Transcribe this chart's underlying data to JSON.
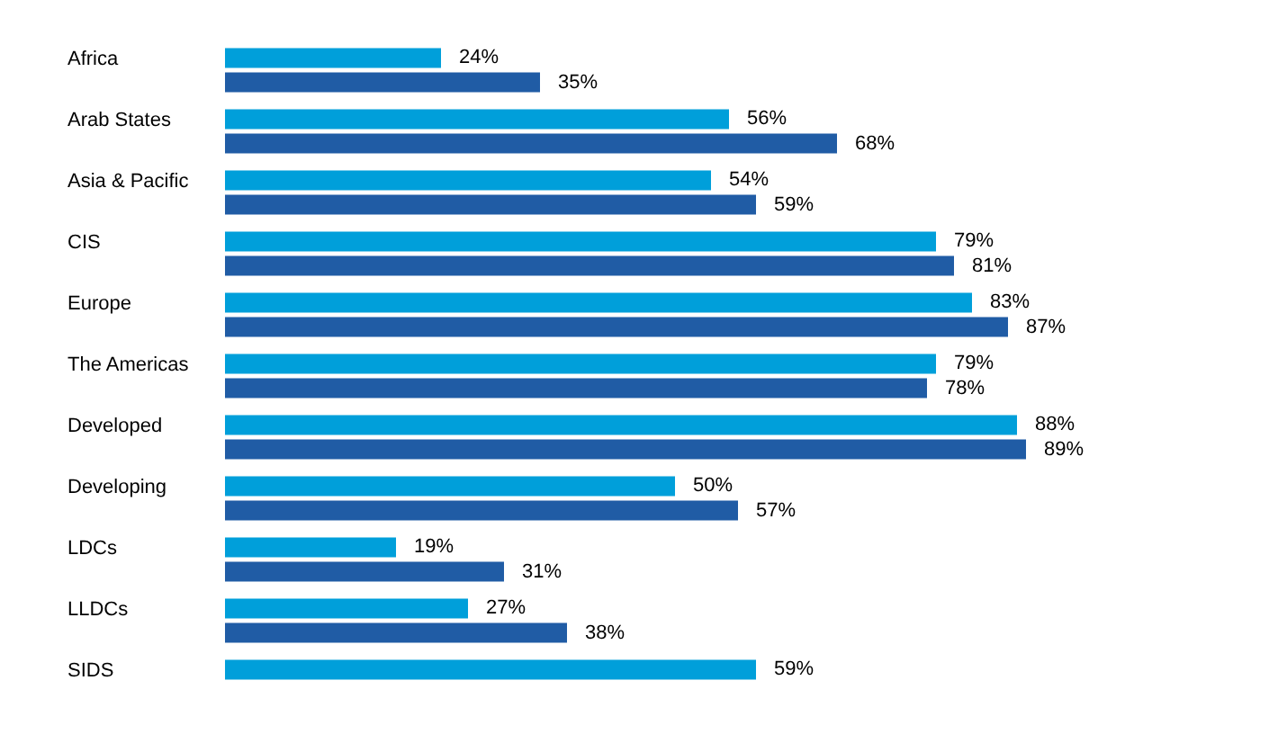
{
  "chart_data": {
    "type": "bar",
    "orientation": "horizontal",
    "categories": [
      "Africa",
      "Arab States",
      "Asia & Pacific",
      "CIS",
      "Europe",
      "The Americas",
      "Developed",
      "Developing",
      "LDCs",
      "LLDCs",
      "SIDS"
    ],
    "tick_labels": "y",
    "series": [
      {
        "color": "#009fda",
        "values": [
          24,
          56,
          54,
          79,
          83,
          79,
          88,
          50,
          19,
          27,
          59
        ],
        "value_labels": [
          "24%",
          "56%",
          "54%",
          "79%",
          "83%",
          "79%",
          "88%",
          "50%",
          "19%",
          "27%",
          "59%"
        ]
      },
      {
        "color": "#205ca5",
        "values": [
          35,
          68,
          59,
          81,
          87,
          78,
          89,
          57,
          31,
          38,
          null
        ],
        "value_labels": [
          "35%",
          "68%",
          "59%",
          "81%",
          "87%",
          "78%",
          "89%",
          "57%",
          "31%",
          "38%",
          null
        ]
      }
    ]
  }
}
